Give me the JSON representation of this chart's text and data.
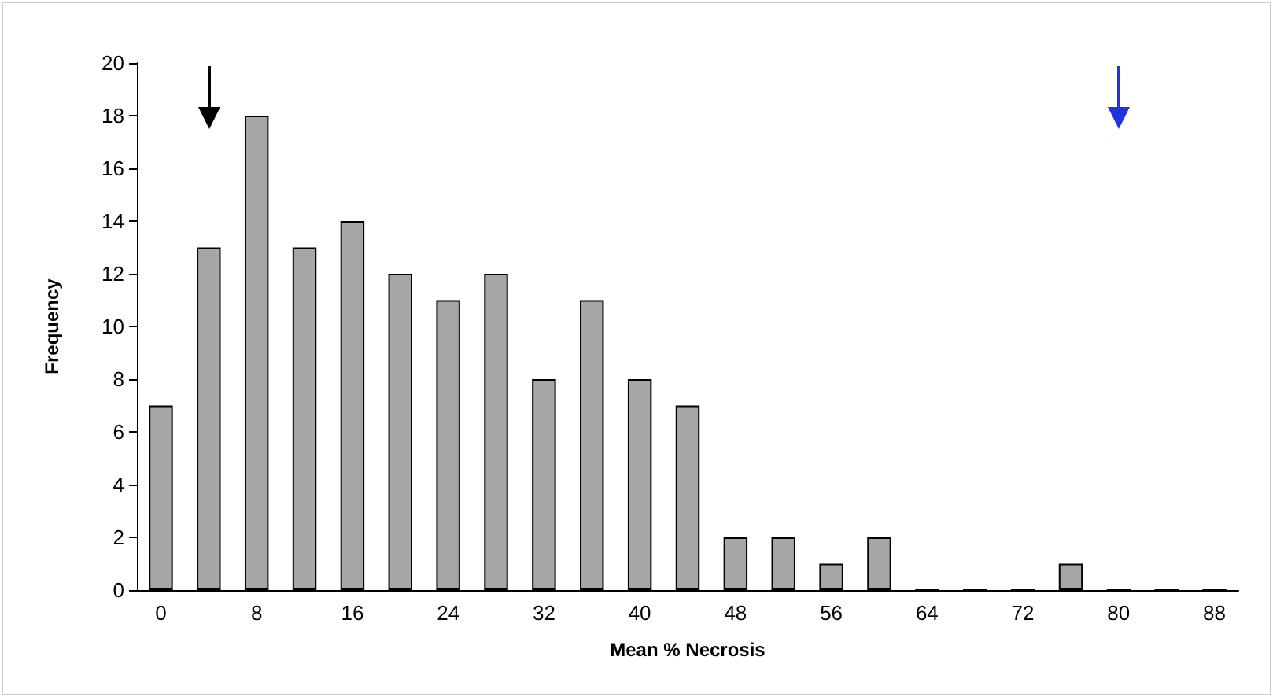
{
  "chart_data": {
    "type": "bar",
    "xlabel": "Mean % Necrosis",
    "ylabel": "Frequency",
    "categories": [
      "0",
      null,
      "8",
      null,
      "16",
      null,
      "24",
      null,
      "32",
      null,
      "40",
      null,
      "48",
      null,
      "56",
      null,
      "64",
      null,
      "72",
      null,
      "80",
      null,
      "88"
    ],
    "values": [
      7,
      13,
      18,
      13,
      14,
      12,
      11,
      12,
      8,
      11,
      8,
      7,
      2,
      2,
      1,
      2,
      0,
      0,
      0,
      1,
      0,
      0,
      0
    ],
    "color": "#a6a6a6",
    "ylim": [
      0,
      20
    ],
    "yticks": [
      0,
      2,
      4,
      6,
      8,
      10,
      12,
      14,
      16,
      18,
      20
    ],
    "grid": false
  }
}
